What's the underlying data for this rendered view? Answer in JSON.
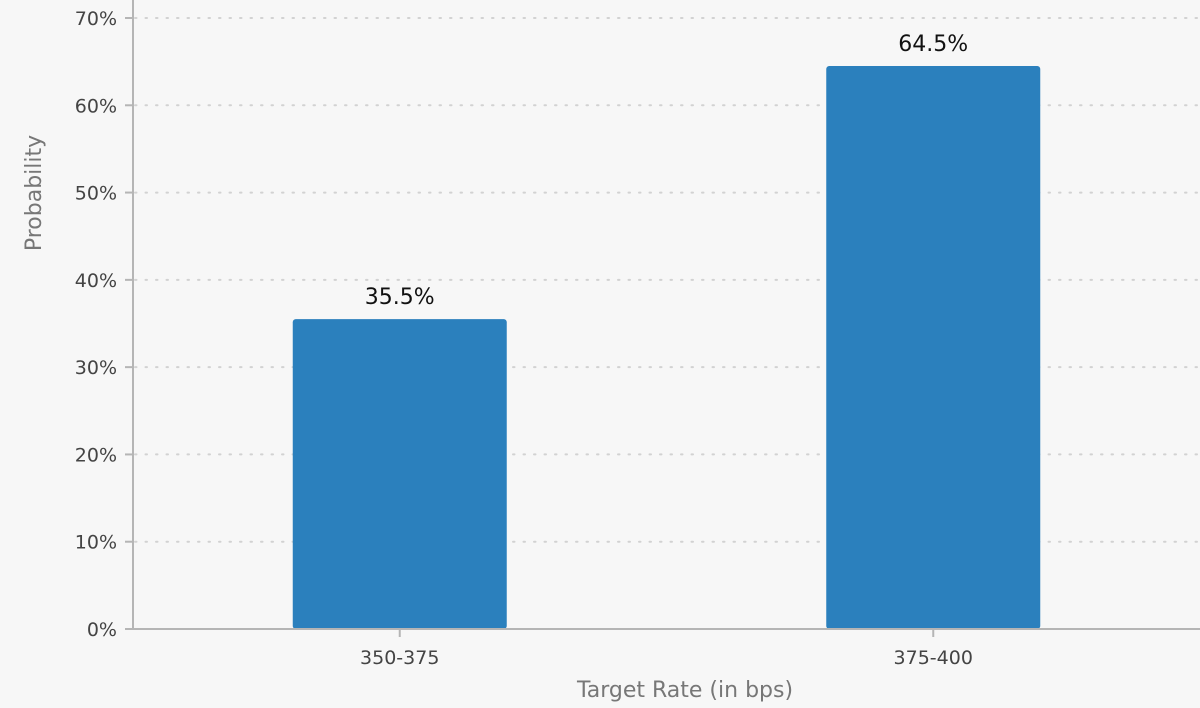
{
  "chart_data": {
    "type": "bar",
    "categories": [
      "350-375",
      "375-400"
    ],
    "values": [
      35.5,
      64.5
    ],
    "data_labels": [
      "35.5%",
      "64.5%"
    ],
    "xlabel": "Target Rate (in bps)",
    "ylabel": "Probability",
    "ylim": [
      0,
      70
    ],
    "yticks": [
      0,
      10,
      20,
      30,
      40,
      50,
      60,
      70
    ],
    "ytick_labels": [
      "0%",
      "10%",
      "20%",
      "30%",
      "40%",
      "50%",
      "60%",
      "70%"
    ],
    "grid": true,
    "grid_style": "dotted",
    "legend": "none",
    "colors": {
      "bar": "#2b80bd",
      "background": "#f7f7f7",
      "grid": "#d2d2d2",
      "axis": "#b5b5b5"
    }
  }
}
